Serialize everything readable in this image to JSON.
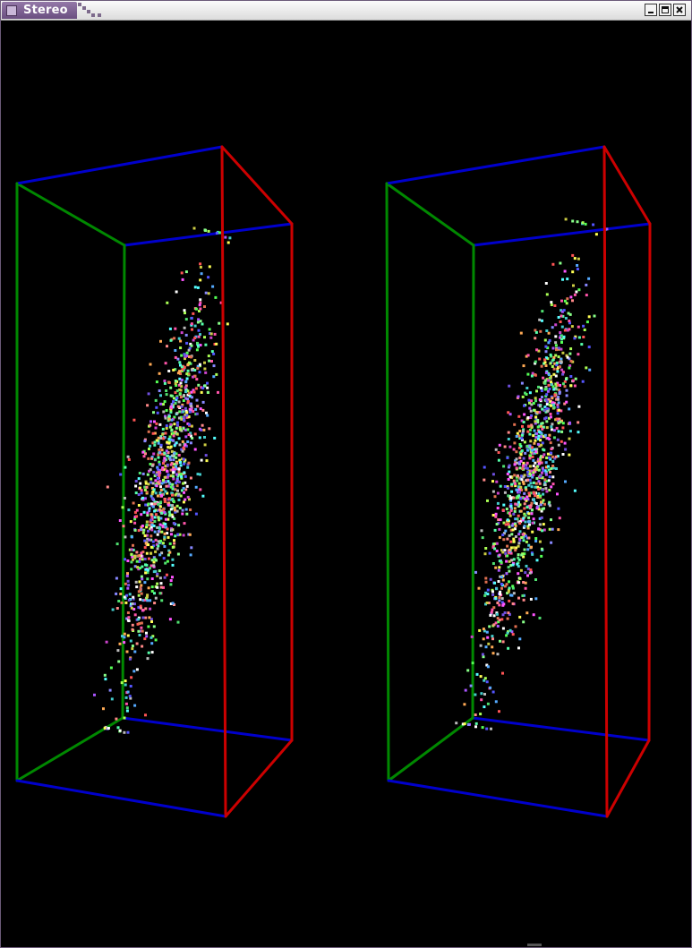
{
  "window": {
    "title": "Stereo",
    "buttons": [
      "minimize",
      "maximize",
      "close"
    ]
  },
  "scene": {
    "views": [
      "left-eye",
      "right-eye"
    ],
    "box_colors": {
      "x_axis": "#0000cc",
      "y_axis": "#008800",
      "z_axis": "#cc0000"
    },
    "point_count_per_view": 1100,
    "point_palette": [
      "#ff5555",
      "#55ff55",
      "#5555ff",
      "#ffff55",
      "#55ffff",
      "#ff55ff",
      "#ffaa55",
      "#aaff55",
      "#55aaff",
      "#ff55aa",
      "#aa55ff",
      "#55ffaa",
      "#ffffff",
      "#bbbbbb",
      "#ff8888",
      "#88ff88",
      "#8888ff",
      "#cc44cc",
      "#44cccc",
      "#cccc44",
      "#e07050",
      "#50e070",
      "#7050e0"
    ]
  }
}
